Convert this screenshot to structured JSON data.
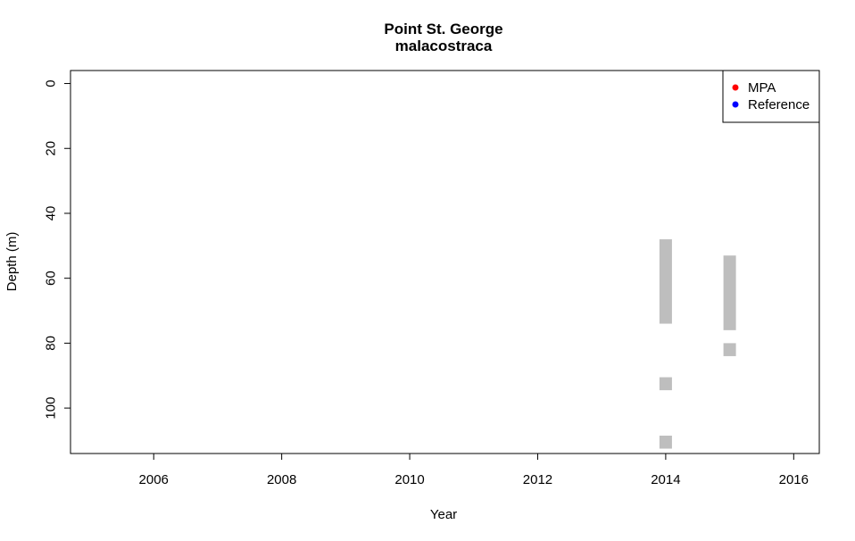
{
  "chart_data": {
    "type": "scatter",
    "title": "Point St. George",
    "subtitle": "malacostraca",
    "xlabel": "Year",
    "ylabel": "Depth (m)",
    "xlim": [
      2004.7,
      2016.4
    ],
    "ylim": [
      114,
      -4
    ],
    "y_reversed": true,
    "x_ticks": [
      2006,
      2008,
      2010,
      2012,
      2014,
      2016
    ],
    "y_ticks": [
      0,
      20,
      40,
      60,
      80,
      100
    ],
    "grid": false,
    "legend": {
      "position": "top-right",
      "entries": [
        {
          "label": "MPA",
          "color": "#ff0000"
        },
        {
          "label": "Reference",
          "color": "#0000ff"
        }
      ]
    },
    "depth_ranges": [
      {
        "x": 2014,
        "y_start": 48,
        "y_end": 74,
        "color": "#bebebe"
      },
      {
        "x": 2014,
        "y_start": 90.5,
        "y_end": 94.5,
        "color": "#bebebe"
      },
      {
        "x": 2014,
        "y_start": 108.5,
        "y_end": 112.5,
        "color": "#bebebe"
      },
      {
        "x": 2015,
        "y_start": 53,
        "y_end": 76,
        "color": "#bebebe"
      },
      {
        "x": 2015,
        "y_start": 80,
        "y_end": 84,
        "color": "#bebebe"
      }
    ]
  }
}
